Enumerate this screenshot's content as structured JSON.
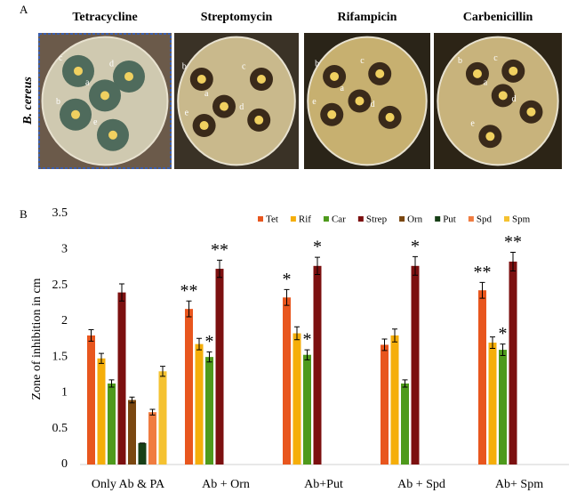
{
  "panel_a": {
    "label": "A",
    "organism": "B. cereus",
    "plates": [
      {
        "title": "Tetracycline",
        "discs": [
          "c",
          "d",
          "a",
          "b",
          "e"
        ]
      },
      {
        "title": "Streptomycin",
        "discs": [
          "b",
          "c",
          "a",
          "d",
          "e"
        ]
      },
      {
        "title": "Rifampicin",
        "discs": [
          "b",
          "c",
          "a",
          "e",
          "d"
        ]
      },
      {
        "title": "Carbenicillin",
        "discs": [
          "b",
          "c",
          "a",
          "d",
          "e"
        ]
      }
    ]
  },
  "chart_data": {
    "type": "bar",
    "panel_label": "B",
    "ylabel": "Zone of inhibition in cm",
    "categories": [
      "Only Ab & PA",
      "Ab + Orn",
      "Ab+Put",
      "Ab + Spd",
      "Ab+ Spm"
    ],
    "ylim": [
      0,
      3.5
    ],
    "yticks": [
      0,
      0.5,
      1,
      1.5,
      2,
      2.5,
      3,
      3.5
    ],
    "legend": "top-right",
    "series": [
      {
        "name": "Tet",
        "color": "#e8561e",
        "values": [
          1.8,
          2.17,
          2.33,
          1.67,
          2.43
        ],
        "errors": [
          0.08,
          0.11,
          0.11,
          0.08,
          0.11
        ],
        "significance": [
          null,
          "**",
          "*",
          null,
          "**"
        ]
      },
      {
        "name": "Rif",
        "color": "#f5ae0a",
        "values": [
          1.48,
          1.68,
          1.83,
          1.8,
          1.7
        ],
        "errors": [
          0.07,
          0.08,
          0.09,
          0.09,
          0.08
        ],
        "significance": [
          null,
          null,
          null,
          null,
          null
        ]
      },
      {
        "name": "Car",
        "color": "#4e9a1c",
        "values": [
          1.13,
          1.5,
          1.53,
          1.13,
          1.6
        ],
        "errors": [
          0.05,
          0.07,
          0.07,
          0.05,
          0.08
        ],
        "significance": [
          null,
          "*",
          "*",
          null,
          "*"
        ]
      },
      {
        "name": "Strep",
        "color": "#7c1010",
        "values": [
          2.4,
          2.73,
          2.77,
          2.77,
          2.83
        ],
        "errors": [
          0.12,
          0.12,
          0.12,
          0.13,
          0.13
        ],
        "significance": [
          null,
          "**",
          "*",
          "*",
          "**"
        ]
      },
      {
        "name": "Orn",
        "color": "#7a4710",
        "values": [
          0.9,
          null,
          null,
          null,
          null
        ],
        "errors": [
          0.04,
          null,
          null,
          null,
          null
        ],
        "significance": [
          null,
          null,
          null,
          null,
          null
        ]
      },
      {
        "name": "Put",
        "color": "#173f17",
        "values": [
          0.3,
          null,
          null,
          null,
          null
        ],
        "errors": [
          0.0,
          null,
          null,
          null,
          null
        ],
        "significance": [
          null,
          null,
          null,
          null,
          null
        ]
      },
      {
        "name": "Spd",
        "color": "#f07c40",
        "values": [
          0.73,
          null,
          null,
          null,
          null
        ],
        "errors": [
          0.04,
          null,
          null,
          null,
          null
        ],
        "significance": [
          null,
          null,
          null,
          null,
          null
        ]
      },
      {
        "name": "Spm",
        "color": "#f5c231",
        "values": [
          1.3,
          null,
          null,
          null,
          null
        ],
        "errors": [
          0.07,
          null,
          null,
          null,
          null
        ],
        "significance": [
          null,
          null,
          null,
          null,
          null
        ]
      }
    ]
  }
}
